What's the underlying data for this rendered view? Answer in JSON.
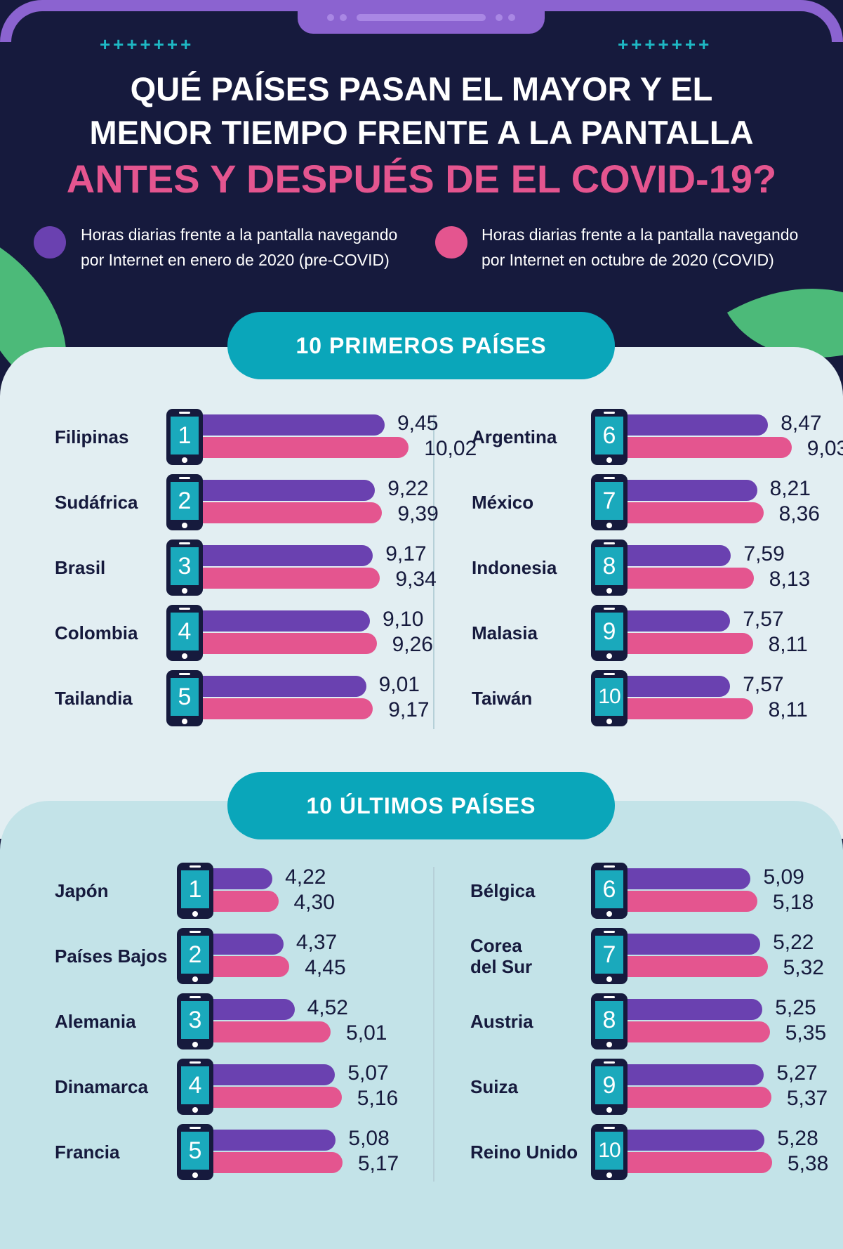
{
  "title": {
    "line1": "QUÉ PAÍSES PASAN EL MAYOR Y EL",
    "line2": "MENOR TIEMPO FRENTE A LA PANTALLA",
    "line3": "ANTES Y DESPUÉS DE EL COVID-19?"
  },
  "decor": {
    "plus_row": "+++++++"
  },
  "legend": {
    "pre": {
      "line1": "Horas diarias frente a la pantalla navegando",
      "line2": "por Internet en enero de 2020 (pre-COVID)",
      "color": "#6a41b0"
    },
    "covid": {
      "line1": "Horas diarias frente a la pantalla navegando",
      "line2": "por Internet en octubre de 2020 (COVID)",
      "color": "#e4558f"
    }
  },
  "chart_data": [
    {
      "type": "bar",
      "title": "10 PRIMEROS PAÍSES",
      "series": [
        {
          "name": "Horas diarias frente a la pantalla navegando por Internet en enero de 2020 (pre-COVID)",
          "color": "#6a41b0"
        },
        {
          "name": "Horas diarias frente a la pantalla navegando por Internet en octubre de 2020 (COVID)",
          "color": "#e4558f"
        }
      ],
      "rows": [
        {
          "rank": "1",
          "country": "Filipinas",
          "pre": "9,45",
          "covid": "10,02",
          "pre_value": 9.45,
          "covid_value": 10.02
        },
        {
          "rank": "2",
          "country": "Sudáfrica",
          "pre": "9,22",
          "covid": "9,39",
          "pre_value": 9.22,
          "covid_value": 9.39
        },
        {
          "rank": "3",
          "country": "Brasil",
          "pre": "9,17",
          "covid": "9,34",
          "pre_value": 9.17,
          "covid_value": 9.34
        },
        {
          "rank": "4",
          "country": "Colombia",
          "pre": "9,10",
          "covid": "9,26",
          "pre_value": 9.1,
          "covid_value": 9.26
        },
        {
          "rank": "5",
          "country": "Tailandia",
          "pre": "9,01",
          "covid": "9,17",
          "pre_value": 9.01,
          "covid_value": 9.17
        },
        {
          "rank": "6",
          "country": "Argentina",
          "pre": "8,47",
          "covid": "9,03",
          "pre_value": 8.47,
          "covid_value": 9.03
        },
        {
          "rank": "7",
          "country": "México",
          "pre": "8,21",
          "covid": "8,36",
          "pre_value": 8.21,
          "covid_value": 8.36
        },
        {
          "rank": "8",
          "country": "Indonesia",
          "pre": "7,59",
          "covid": "8,13",
          "pre_value": 7.59,
          "covid_value": 8.13
        },
        {
          "rank": "9",
          "country": "Malasia",
          "pre": "7,57",
          "covid": "8,11",
          "pre_value": 7.57,
          "covid_value": 8.11
        },
        {
          "rank": "10",
          "country": "Taiwán",
          "pre": "7,57",
          "covid": "8,11",
          "pre_value": 7.57,
          "covid_value": 8.11
        }
      ]
    },
    {
      "type": "bar",
      "title": "10 ÚLTIMOS PAÍSES",
      "series": [
        {
          "name": "Horas diarias frente a la pantalla navegando por Internet en enero de 2020 (pre-COVID)",
          "color": "#6a41b0"
        },
        {
          "name": "Horas diarias frente a la pantalla navegando por Internet en octubre de 2020 (COVID)",
          "color": "#e4558f"
        }
      ],
      "rows": [
        {
          "rank": "1",
          "country": "Japón",
          "pre": "4,22",
          "covid": "4,30",
          "pre_value": 4.22,
          "covid_value": 4.3
        },
        {
          "rank": "2",
          "country": "Países Bajos",
          "pre": "4,37",
          "covid": "4,45",
          "pre_value": 4.37,
          "covid_value": 4.45
        },
        {
          "rank": "3",
          "country": "Alemania",
          "pre": "4,52",
          "covid": "5,01",
          "pre_value": 4.52,
          "covid_value": 5.01
        },
        {
          "rank": "4",
          "country": "Dinamarca",
          "pre": "5,07",
          "covid": "5,16",
          "pre_value": 5.07,
          "covid_value": 5.16
        },
        {
          "rank": "5",
          "country": "Francia",
          "pre": "5,08",
          "covid": "5,17",
          "pre_value": 5.08,
          "covid_value": 5.17
        },
        {
          "rank": "6",
          "country": "Bélgica",
          "pre": "5,09",
          "covid": "5,18",
          "pre_value": 5.09,
          "covid_value": 5.18
        },
        {
          "rank": "7",
          "country": "Corea\ndel Sur",
          "pre": "5,22",
          "covid": "5,32",
          "pre_value": 5.22,
          "covid_value": 5.32
        },
        {
          "rank": "8",
          "country": "Austria",
          "pre": "5,25",
          "covid": "5,35",
          "pre_value": 5.25,
          "covid_value": 5.35
        },
        {
          "rank": "9",
          "country": "Suiza",
          "pre": "5,27",
          "covid": "5,37",
          "pre_value": 5.27,
          "covid_value": 5.37
        },
        {
          "rank": "10",
          "country": "Reino Unido",
          "pre": "5,28",
          "covid": "5,38",
          "pre_value": 5.28,
          "covid_value": 5.38
        }
      ]
    }
  ]
}
